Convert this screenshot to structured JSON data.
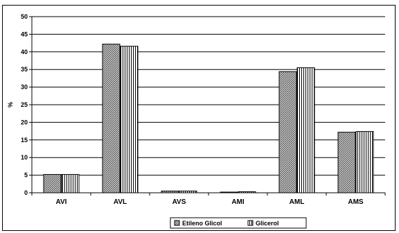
{
  "chart_data": {
    "type": "bar",
    "categories": [
      "AVI",
      "AVL",
      "AVS",
      "AMI",
      "AML",
      "AMS"
    ],
    "series": [
      {
        "name": "Etileno Glicol",
        "values": [
          5.2,
          42.2,
          0.5,
          0.2,
          34.4,
          17.2
        ]
      },
      {
        "name": "Glicerol",
        "values": [
          5.2,
          41.6,
          0.5,
          0.3,
          35.5,
          17.4
        ]
      }
    ],
    "ylabel": "%",
    "ylim": [
      0,
      50
    ],
    "yticks": [
      0,
      5,
      10,
      15,
      20,
      25,
      30,
      35,
      40,
      45,
      50
    ],
    "grid": true,
    "legend_position": "bottom-right",
    "colors": {
      "axis": "#000000",
      "grid": "#000000",
      "bar_fill": "#c8c8c8"
    }
  }
}
